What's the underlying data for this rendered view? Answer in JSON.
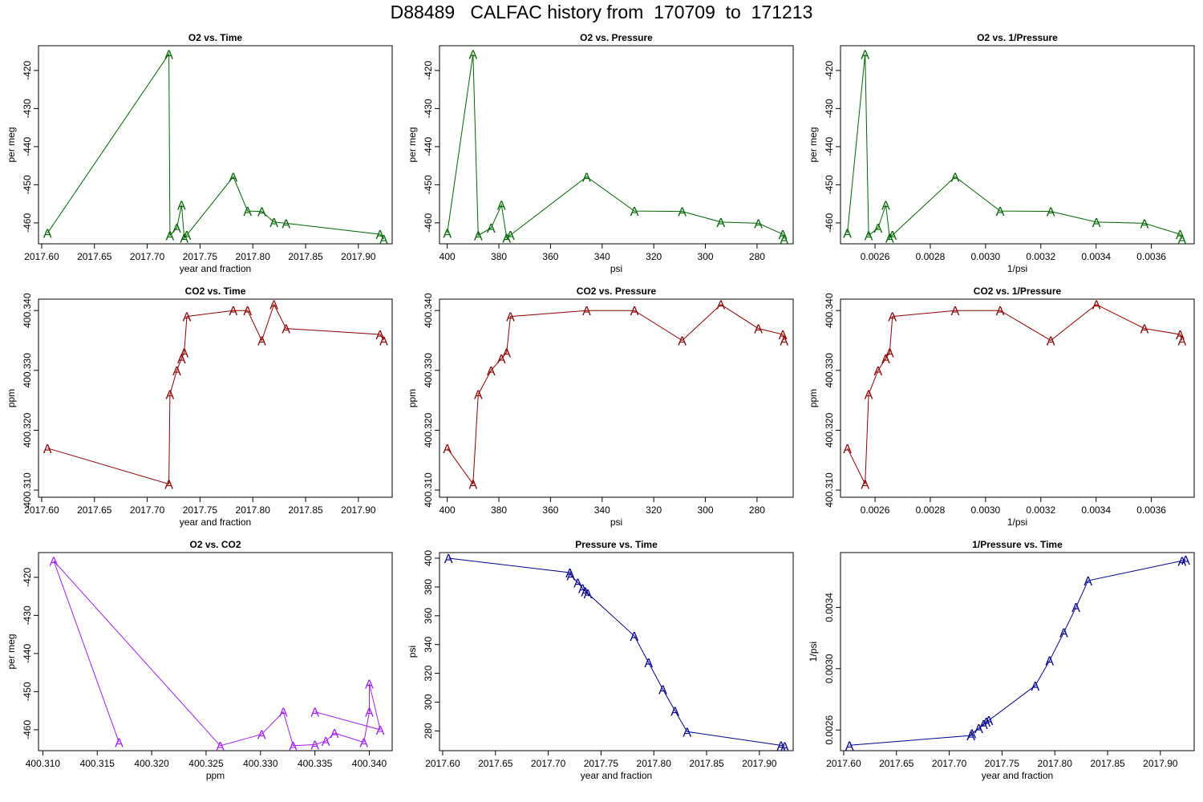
{
  "main_title": "D88489   CALFAC history from  170709  to  171213",
  "colors": {
    "o2": "#006400",
    "co2": "#8b0000",
    "o2co2": "#a020f0",
    "pressure": "#00008b"
  },
  "chart_data": [
    {
      "type": "line",
      "marker": "A",
      "color": "#006400",
      "title": "O2 vs. Time",
      "xlabel": "year and fraction",
      "ylabel": "per meg",
      "xticks": [
        2017.6,
        2017.65,
        2017.7,
        2017.75,
        2017.8,
        2017.85,
        2017.9
      ],
      "xtick_labels": [
        "2017.60",
        "2017.65",
        "2017.70",
        "2017.75",
        "2017.80",
        "2017.85",
        "2017.90"
      ],
      "yticks": [
        -420,
        -430,
        -440,
        -450,
        -460
      ],
      "ytick_labels": [
        "-420",
        "-430",
        "-440",
        "-450",
        "-460"
      ],
      "xlim": [
        2017.597,
        2017.932
      ],
      "ylim": [
        -465.5,
        -413.5
      ],
      "x": [
        2017.6055,
        2017.7205,
        2017.7215,
        2017.728,
        2017.7325,
        2017.735,
        2017.7375,
        2017.7815,
        2017.795,
        2017.8085,
        2017.82,
        2017.8315,
        2017.9205,
        2017.924
      ],
      "y": [
        -462.7,
        -415.7,
        -463.3,
        -461.3,
        -455.3,
        -463.9,
        -463.2,
        -447.9,
        -456.9,
        -457.0,
        -459.8,
        -460.1,
        -463.0,
        -464.2
      ]
    },
    {
      "type": "line",
      "marker": "A",
      "color": "#006400",
      "title": "O2 vs. Pressure",
      "xlabel": "psi",
      "ylabel": "per meg",
      "xticks": [
        400,
        380,
        360,
        340,
        320,
        300,
        280
      ],
      "xtick_labels": [
        "400",
        "380",
        "360",
        "340",
        "320",
        "300",
        "280"
      ],
      "yticks": [
        -420,
        -430,
        -440,
        -450,
        -460
      ],
      "ytick_labels": [
        "-420",
        "-430",
        "-440",
        "-450",
        "-460"
      ],
      "xlim": [
        403,
        266
      ],
      "ylim": [
        -465.5,
        -413.5
      ],
      "x": [
        400,
        390,
        388,
        383,
        379,
        377,
        375.5,
        346,
        327.5,
        309,
        294,
        279.5,
        270,
        269.5
      ],
      "y": [
        -462.7,
        -415.7,
        -463.3,
        -461.3,
        -455.3,
        -463.9,
        -463.2,
        -447.9,
        -456.9,
        -457.0,
        -459.8,
        -460.1,
        -463.0,
        -464.2
      ]
    },
    {
      "type": "line",
      "marker": "A",
      "color": "#006400",
      "title": "O2 vs. 1/Pressure",
      "xlabel": "1/psi",
      "ylabel": "per meg",
      "xticks": [
        0.0026,
        0.0028,
        0.003,
        0.0032,
        0.0034,
        0.0036
      ],
      "xtick_labels": [
        "0.0026",
        "0.0028",
        "0.0030",
        "0.0032",
        "0.0034",
        "0.0036"
      ],
      "yticks": [
        -420,
        -430,
        -440,
        -450,
        -460
      ],
      "ytick_labels": [
        "-420",
        "-430",
        "-440",
        "-450",
        "-460"
      ],
      "xlim": [
        0.002475,
        0.003755
      ],
      "ylim": [
        -465.5,
        -413.5
      ],
      "x": [
        0.0025,
        0.002564,
        0.002577,
        0.002611,
        0.002639,
        0.002653,
        0.002663,
        0.00289,
        0.003053,
        0.003236,
        0.003401,
        0.003575,
        0.003704,
        0.003711
      ],
      "y": [
        -462.7,
        -415.7,
        -463.3,
        -461.3,
        -455.3,
        -463.9,
        -463.2,
        -447.9,
        -456.9,
        -457.0,
        -459.8,
        -460.1,
        -463.0,
        -464.2
      ]
    },
    {
      "type": "line",
      "marker": "A",
      "color": "#8b0000",
      "title": "CO2 vs. Time",
      "xlabel": "year and fraction",
      "ylabel": "ppm",
      "xticks": [
        2017.6,
        2017.65,
        2017.7,
        2017.75,
        2017.8,
        2017.85,
        2017.9
      ],
      "xtick_labels": [
        "2017.60",
        "2017.65",
        "2017.70",
        "2017.75",
        "2017.80",
        "2017.85",
        "2017.90"
      ],
      "yticks": [
        400.31,
        400.32,
        400.33,
        400.34
      ],
      "ytick_labels": [
        "400.310",
        "400.320",
        "400.330",
        "400.340"
      ],
      "xlim": [
        2017.597,
        2017.932
      ],
      "ylim": [
        400.3088,
        400.3419
      ],
      "x": [
        2017.6055,
        2017.7205,
        2017.7215,
        2017.728,
        2017.7325,
        2017.735,
        2017.7375,
        2017.7815,
        2017.795,
        2017.8085,
        2017.82,
        2017.8315,
        2017.9205,
        2017.924
      ],
      "y": [
        400.317,
        400.311,
        400.326,
        400.33,
        400.332,
        400.333,
        400.339,
        400.34,
        400.34,
        400.335,
        400.341,
        400.337,
        400.336,
        400.335
      ]
    },
    {
      "type": "line",
      "marker": "A",
      "color": "#8b0000",
      "title": "CO2 vs. Pressure",
      "xlabel": "psi",
      "ylabel": "ppm",
      "xticks": [
        400,
        380,
        360,
        340,
        320,
        300,
        280
      ],
      "xtick_labels": [
        "400",
        "380",
        "360",
        "340",
        "320",
        "300",
        "280"
      ],
      "yticks": [
        400.31,
        400.32,
        400.33,
        400.34
      ],
      "ytick_labels": [
        "400.310",
        "400.320",
        "400.330",
        "400.340"
      ],
      "xlim": [
        403,
        266
      ],
      "ylim": [
        400.3088,
        400.3419
      ],
      "x": [
        400,
        390,
        388,
        383,
        379,
        377,
        375.5,
        346,
        327.5,
        309,
        294,
        279.5,
        270,
        269.5
      ],
      "y": [
        400.317,
        400.311,
        400.326,
        400.33,
        400.332,
        400.333,
        400.339,
        400.34,
        400.34,
        400.335,
        400.341,
        400.337,
        400.336,
        400.335
      ]
    },
    {
      "type": "line",
      "marker": "A",
      "color": "#8b0000",
      "title": "CO2 vs. 1/Pressure",
      "xlabel": "1/psi",
      "ylabel": "ppm",
      "xticks": [
        0.0026,
        0.0028,
        0.003,
        0.0032,
        0.0034,
        0.0036
      ],
      "xtick_labels": [
        "0.0026",
        "0.0028",
        "0.0030",
        "0.0032",
        "0.0034",
        "0.0036"
      ],
      "yticks": [
        400.31,
        400.32,
        400.33,
        400.34
      ],
      "ytick_labels": [
        "400.310",
        "400.320",
        "400.330",
        "400.340"
      ],
      "xlim": [
        0.002475,
        0.003755
      ],
      "ylim": [
        400.3088,
        400.3419
      ],
      "x": [
        0.0025,
        0.002564,
        0.002577,
        0.002611,
        0.002639,
        0.002653,
        0.002663,
        0.00289,
        0.003053,
        0.003236,
        0.003401,
        0.003575,
        0.003704,
        0.003711
      ],
      "y": [
        400.317,
        400.311,
        400.326,
        400.33,
        400.332,
        400.333,
        400.339,
        400.34,
        400.34,
        400.335,
        400.341,
        400.337,
        400.336,
        400.335
      ]
    },
    {
      "type": "line",
      "marker": "A",
      "color": "#a020f0",
      "title": "O2 vs. CO2",
      "xlabel": "ppm",
      "ylabel": "per meg",
      "xticks": [
        400.31,
        400.315,
        400.32,
        400.325,
        400.33,
        400.335,
        400.34
      ],
      "xtick_labels": [
        "400.310",
        "400.315",
        "400.320",
        "400.325",
        "400.330",
        "400.335",
        "400.340"
      ],
      "yticks": [
        -420,
        -430,
        -440,
        -450,
        -460
      ],
      "ytick_labels": [
        "-420",
        "-430",
        "-440",
        "-450",
        "-460"
      ],
      "xlim": [
        400.3096,
        400.3421
      ],
      "ylim": [
        -465.5,
        -413.5
      ],
      "x": [
        400.317,
        400.311,
        400.3263,
        400.3301,
        400.3321,
        400.333,
        400.335,
        400.336,
        400.3368,
        400.3395,
        400.34,
        400.34,
        400.341,
        400.335
      ],
      "y": [
        -463.3,
        -415.7,
        -464.2,
        -461.2,
        -455.3,
        -464.2,
        -463.9,
        -463.0,
        -460.9,
        -463.3,
        -455.3,
        -447.9,
        -460.0,
        -455.3
      ]
    },
    {
      "type": "line",
      "marker": "A",
      "color": "#00008b",
      "title": "Pressure vs. Time",
      "xlabel": "year and fraction",
      "ylabel": "psi",
      "xticks": [
        2017.6,
        2017.65,
        2017.7,
        2017.75,
        2017.8,
        2017.85,
        2017.9
      ],
      "xtick_labels": [
        "2017.60",
        "2017.65",
        "2017.70",
        "2017.75",
        "2017.80",
        "2017.85",
        "2017.90"
      ],
      "yticks": [
        280,
        300,
        320,
        340,
        360,
        380,
        400
      ],
      "ytick_labels": [
        "280",
        "300",
        "320",
        "340",
        "360",
        "380",
        "400"
      ],
      "xlim": [
        2017.597,
        2017.932
      ],
      "ylim": [
        266.3,
        403.9
      ],
      "x": [
        2017.6055,
        2017.7205,
        2017.7215,
        2017.728,
        2017.7325,
        2017.735,
        2017.7375,
        2017.7815,
        2017.795,
        2017.8085,
        2017.82,
        2017.8315,
        2017.9205,
        2017.924
      ],
      "y": [
        400,
        390,
        388,
        383,
        379,
        377,
        375.5,
        346,
        327.5,
        309,
        294,
        279.5,
        270,
        269.5
      ]
    },
    {
      "type": "line",
      "marker": "A",
      "color": "#00008b",
      "title": "1/Pressure vs. Time",
      "xlabel": "year and fraction",
      "ylabel": "1/psi",
      "xticks": [
        2017.6,
        2017.65,
        2017.7,
        2017.75,
        2017.8,
        2017.85,
        2017.9
      ],
      "xtick_labels": [
        "2017.60",
        "2017.65",
        "2017.70",
        "2017.75",
        "2017.80",
        "2017.85",
        "2017.90"
      ],
      "yticks": [
        0.0026,
        0.003,
        0.0034
      ],
      "ytick_labels": [
        "0.0026",
        "0.0030",
        "0.0034"
      ],
      "xlim": [
        2017.597,
        2017.932
      ],
      "ylim": [
        0.002465,
        0.003758
      ],
      "x": [
        2017.6055,
        2017.7205,
        2017.7215,
        2017.728,
        2017.7325,
        2017.735,
        2017.7375,
        2017.7815,
        2017.795,
        2017.8085,
        2017.82,
        2017.8315,
        2017.9205,
        2017.924
      ],
      "y": [
        0.0025,
        0.002564,
        0.002577,
        0.002611,
        0.002639,
        0.002653,
        0.002663,
        0.00289,
        0.003053,
        0.003236,
        0.003401,
        0.003575,
        0.003704,
        0.003711
      ]
    }
  ]
}
